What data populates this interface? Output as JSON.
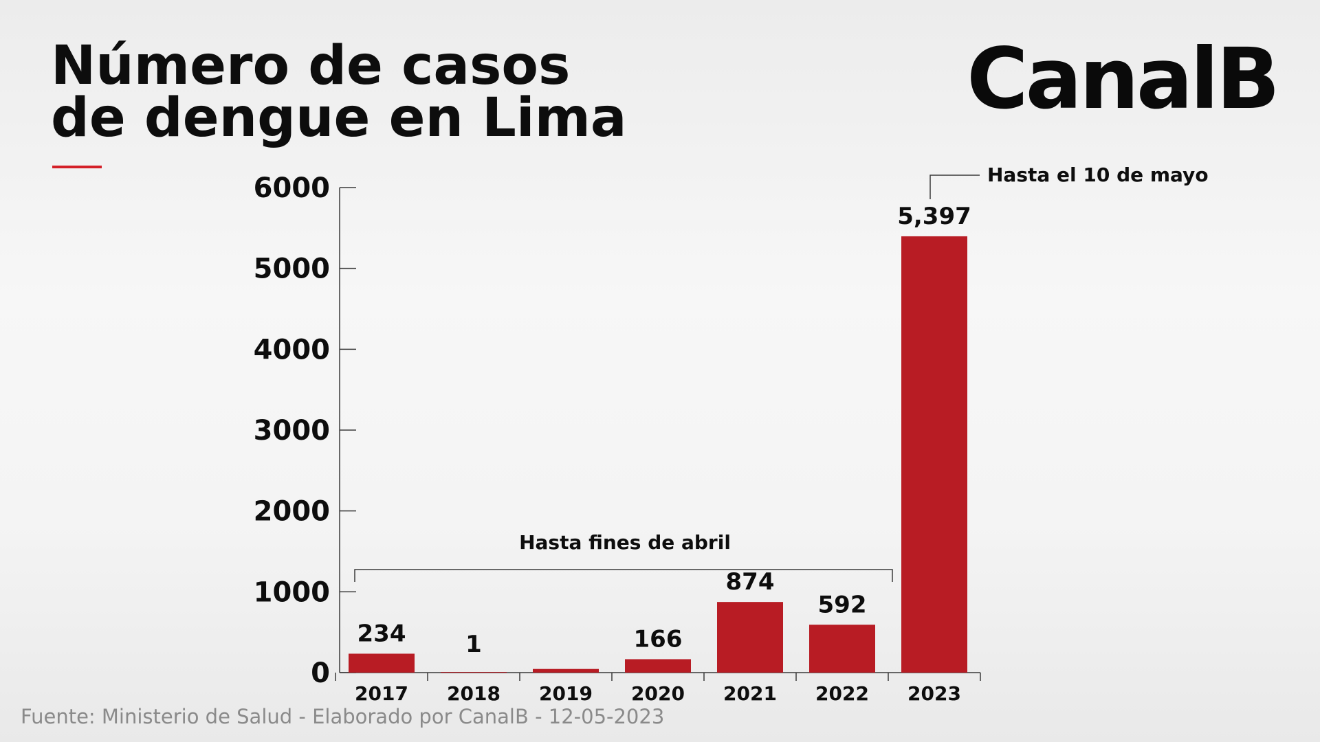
{
  "header": {
    "title_line1": "Número de casos",
    "title_line2": "de dengue en Lima",
    "logo": "CanalB"
  },
  "footer": {
    "source": "Fuente: Ministerio de Salud - Elaborado por CanalB - 12-05-2023"
  },
  "colors": {
    "bar": "#b81c24",
    "accent": "#d42028",
    "text": "#0d0d0d"
  },
  "chart_data": {
    "type": "bar",
    "title": "Número de casos de dengue en Lima",
    "categories": [
      "2017",
      "2018",
      "2019",
      "2020",
      "2021",
      "2022",
      "2023"
    ],
    "values": [
      234,
      1,
      45,
      166,
      874,
      592,
      5397
    ],
    "value_labels": [
      "234",
      "1",
      "",
      "166",
      "874",
      "592",
      "5,397"
    ],
    "yticks": [
      "0",
      "1000",
      "2000",
      "3000",
      "4000",
      "5000",
      "6000"
    ],
    "ylim": [
      0,
      6000
    ],
    "xlabel": "",
    "ylabel": "",
    "grid": false,
    "legend": "none",
    "annotations": [
      {
        "text": "Hasta fines de abril",
        "applies_to": [
          "2017",
          "2018",
          "2019",
          "2020",
          "2021",
          "2022"
        ]
      },
      {
        "text": "Hasta el 10 de mayo",
        "applies_to": [
          "2023"
        ]
      }
    ]
  }
}
